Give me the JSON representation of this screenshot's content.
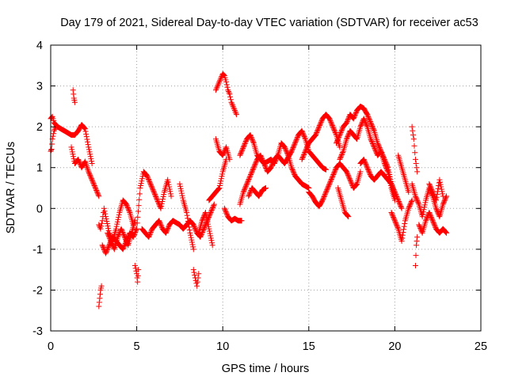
{
  "chart_data": {
    "type": "scatter",
    "title": "Day 179 of 2021, Sidereal Day-to-day VTEC variation (SDTVAR) for receiver ac53",
    "xlabel": "GPS time / hours",
    "ylabel": "SDTVAR / TECUs",
    "xlim": [
      0,
      25
    ],
    "ylim": [
      -3,
      4
    ],
    "xticks": [
      0,
      5,
      10,
      15,
      20,
      25
    ],
    "xtick_labels": [
      "0",
      "5",
      "10",
      "15",
      "20",
      "25"
    ],
    "yticks": [
      -3,
      -2,
      -1,
      0,
      1,
      2,
      3,
      4
    ],
    "ytick_labels": [
      "-3",
      "-2",
      "-1",
      "0",
      "1",
      "2",
      "3",
      "4"
    ],
    "grid": true,
    "marker": "+",
    "color": "#ff0000",
    "series": [
      {
        "name": "SDTVAR",
        "segments": [
          {
            "x": [
              0.0,
              0.1,
              0.2,
              0.4,
              0.6,
              0.8,
              1.0,
              1.2,
              1.4,
              1.6,
              1.8,
              2.0,
              2.2,
              2.4
            ],
            "y": [
              2.2,
              2.25,
              2.1,
              2.0,
              1.95,
              1.9,
              1.85,
              1.8,
              1.8,
              1.9,
              2.05,
              1.95,
              1.5,
              1.1
            ]
          },
          {
            "x": [
              0.0,
              0.05,
              0.1,
              0.2,
              0.3
            ],
            "y": [
              1.4,
              1.45,
              1.7,
              1.9,
              2.0
            ]
          },
          {
            "x": [
              1.2,
              1.4,
              1.6,
              1.8,
              2.0,
              2.2,
              2.4,
              2.6,
              2.8
            ],
            "y": [
              1.5,
              1.1,
              1.2,
              1.0,
              1.15,
              0.9,
              0.7,
              0.5,
              0.3
            ]
          },
          {
            "x": [
              1.3,
              1.35,
              1.4
            ],
            "y": [
              2.9,
              2.7,
              2.6
            ]
          },
          {
            "x": [
              2.8,
              2.9,
              3.0,
              3.1,
              3.2,
              3.4,
              3.6,
              3.8,
              4.0,
              4.2,
              4.4,
              4.6,
              4.8
            ],
            "y": [
              -0.4,
              -0.5,
              -0.3,
              0.0,
              -0.2,
              -0.6,
              -0.8,
              -0.5,
              -0.1,
              0.2,
              0.1,
              -0.1,
              -0.4
            ]
          },
          {
            "x": [
              2.8,
              2.85,
              2.9,
              2.95
            ],
            "y": [
              -2.4,
              -2.2,
              -2.0,
              -1.9
            ]
          },
          {
            "x": [
              3.0,
              3.2,
              3.4,
              3.6,
              3.8,
              4.0,
              4.2,
              4.4,
              4.6,
              4.8,
              5.0
            ],
            "y": [
              -0.9,
              -1.1,
              -0.9,
              -0.7,
              -0.8,
              -0.9,
              -1.0,
              -0.8,
              -0.6,
              -0.7,
              -0.5
            ]
          },
          {
            "x": [
              3.3,
              3.5,
              3.7,
              3.9,
              4.1,
              4.3,
              4.5,
              4.7,
              4.9
            ],
            "y": [
              -0.6,
              -0.8,
              -1.0,
              -0.7,
              -0.5,
              -0.7,
              -0.9,
              -0.6,
              -0.3
            ]
          },
          {
            "x": [
              4.9,
              5.0,
              5.05,
              5.1
            ],
            "y": [
              -1.4,
              -1.6,
              -1.8,
              -1.5
            ]
          },
          {
            "x": [
              5.0,
              5.2,
              5.4,
              5.6,
              5.8,
              6.0,
              6.2,
              6.4,
              6.6,
              6.8,
              7.0
            ],
            "y": [
              -0.5,
              0.5,
              0.9,
              0.8,
              0.6,
              0.4,
              0.2,
              0.0,
              0.4,
              0.7,
              0.3
            ]
          },
          {
            "x": [
              5.3,
              5.5,
              5.7,
              5.9,
              6.1,
              6.3,
              6.5,
              6.7,
              6.9,
              7.1,
              7.3,
              7.5,
              7.7,
              7.9,
              8.1,
              8.3,
              8.5,
              8.7,
              8.9,
              9.1,
              9.3,
              9.5
            ],
            "y": [
              -0.5,
              -0.6,
              -0.7,
              -0.5,
              -0.4,
              -0.3,
              -0.5,
              -0.6,
              -0.4,
              -0.3,
              -0.35,
              -0.4,
              -0.5,
              -0.4,
              -0.3,
              -0.4,
              -0.6,
              -0.7,
              -0.5,
              -0.3,
              -0.1,
              0.1
            ]
          },
          {
            "x": [
              7.5,
              7.7,
              7.9,
              8.1,
              8.3
            ],
            "y": [
              0.6,
              0.2,
              -0.1,
              -0.6,
              -1.0
            ]
          },
          {
            "x": [
              8.3,
              8.4,
              8.5,
              8.6
            ],
            "y": [
              -1.5,
              -1.7,
              -1.9,
              -1.6
            ]
          },
          {
            "x": [
              8.6,
              8.8,
              9.0,
              9.2,
              9.4
            ],
            "y": [
              -0.6,
              -0.3,
              -0.1,
              -0.5,
              -0.9
            ]
          },
          {
            "x": [
              9.2,
              9.4,
              9.6,
              9.8,
              10.0,
              10.2
            ],
            "y": [
              0.2,
              0.3,
              0.4,
              0.5,
              0.9,
              1.2
            ]
          },
          {
            "x": [
              9.6,
              9.7,
              9.8,
              9.9,
              10.0,
              10.1,
              10.2,
              10.3,
              10.4,
              10.5,
              10.6,
              10.7,
              10.8
            ],
            "y": [
              2.9,
              3.0,
              3.1,
              3.2,
              3.3,
              3.25,
              3.1,
              2.9,
              2.8,
              2.6,
              2.5,
              2.4,
              2.3
            ]
          },
          {
            "x": [
              9.6,
              9.8,
              10.0,
              10.2,
              10.4
            ],
            "y": [
              1.7,
              1.4,
              1.3,
              1.5,
              1.2
            ]
          },
          {
            "x": [
              10.1,
              10.3,
              10.5,
              10.7,
              10.9,
              11.1
            ],
            "y": [
              0.0,
              -0.2,
              -0.3,
              -0.25,
              -0.3,
              -0.3
            ]
          },
          {
            "x": [
              11.0,
              11.2,
              11.4,
              11.6,
              11.8,
              12.0,
              12.2,
              12.4,
              12.6,
              12.8,
              13.0,
              13.2,
              13.4,
              13.6,
              13.8,
              14.0,
              14.2,
              14.4,
              14.6,
              14.8,
              15.0
            ],
            "y": [
              1.3,
              1.5,
              1.7,
              1.8,
              1.6,
              1.3,
              1.2,
              1.1,
              1.15,
              1.2,
              1.1,
              1.3,
              1.6,
              1.5,
              1.3,
              1.0,
              0.8,
              0.7,
              0.6,
              0.55,
              0.5
            ]
          },
          {
            "x": [
              11.0,
              11.2,
              11.4,
              11.6,
              11.8,
              12.0,
              12.2,
              12.4,
              12.6,
              12.8,
              13.0,
              13.2,
              13.4,
              13.6,
              13.8,
              14.0,
              14.2,
              14.4,
              14.6,
              14.8,
              15.0,
              15.2,
              15.4,
              15.6,
              15.8,
              16.0
            ],
            "y": [
              0.1,
              0.4,
              0.6,
              0.8,
              1.0,
              1.2,
              1.3,
              1.1,
              0.9,
              1.0,
              1.2,
              1.3,
              1.2,
              1.1,
              1.25,
              1.4,
              1.6,
              1.8,
              1.9,
              1.7,
              1.4,
              1.3,
              1.2,
              1.1,
              1.0,
              0.95
            ]
          },
          {
            "x": [
              11.5,
              11.7,
              11.9,
              12.1,
              12.3,
              12.5
            ],
            "y": [
              0.3,
              0.5,
              0.4,
              0.3,
              0.45,
              0.5
            ]
          },
          {
            "x": [
              14.6,
              14.8,
              15.0,
              15.2,
              15.4,
              15.6,
              15.8,
              16.0,
              16.2,
              16.4,
              16.6,
              16.8
            ],
            "y": [
              1.2,
              1.4,
              1.6,
              1.7,
              1.8,
              2.0,
              2.2,
              2.3,
              2.2,
              2.0,
              1.8,
              1.5
            ]
          },
          {
            "x": [
              15.0,
              15.2,
              15.4,
              15.6,
              15.8,
              16.0,
              16.2,
              16.4,
              16.6,
              16.8,
              17.0,
              17.2,
              17.4,
              17.6,
              17.8,
              18.0
            ],
            "y": [
              0.4,
              0.3,
              0.15,
              0.05,
              0.2,
              0.4,
              0.6,
              0.8,
              1.0,
              1.1,
              1.0,
              0.9,
              0.7,
              0.5,
              0.6,
              0.9
            ]
          },
          {
            "x": [
              16.6,
              16.8,
              17.0,
              17.2,
              17.4,
              17.6,
              17.8,
              18.0,
              18.2,
              18.4,
              18.6,
              18.8,
              19.0,
              19.2,
              19.4,
              19.6,
              19.8,
              20.0
            ],
            "y": [
              1.6,
              1.8,
              2.0,
              2.1,
              2.3,
              2.2,
              2.4,
              2.5,
              2.45,
              2.3,
              2.1,
              1.9,
              1.6,
              1.4,
              1.1,
              0.9,
              0.5,
              0.2
            ]
          },
          {
            "x": [
              16.8,
              17.0,
              17.2,
              17.4,
              17.6,
              17.8,
              18.0,
              18.2,
              18.4,
              18.6,
              18.8,
              19.0,
              19.2,
              19.4,
              19.6,
              19.8,
              20.0
            ],
            "y": [
              1.2,
              1.4,
              1.7,
              1.9,
              1.8,
              1.7,
              2.0,
              2.2,
              2.0,
              1.7,
              1.5,
              1.3,
              1.4,
              1.2,
              1.0,
              0.6,
              0.3
            ]
          },
          {
            "x": [
              16.7,
              16.9,
              17.1,
              17.3
            ],
            "y": [
              0.5,
              0.2,
              -0.1,
              -0.2
            ]
          },
          {
            "x": [
              18.0,
              18.2,
              18.4,
              18.6,
              18.8,
              19.0,
              19.2,
              19.4,
              19.6,
              19.8,
              20.0,
              20.2,
              20.4
            ],
            "y": [
              1.1,
              1.2,
              1.0,
              0.8,
              0.7,
              0.8,
              0.9,
              0.8,
              0.7,
              0.6,
              0.4,
              0.2,
              0.0
            ]
          },
          {
            "x": [
              19.8,
              20.0,
              20.2,
              20.4,
              20.6,
              20.8,
              21.0
            ],
            "y": [
              -0.1,
              -0.3,
              -0.5,
              -0.8,
              -0.3,
              0.0,
              0.2
            ]
          },
          {
            "x": [
              20.2,
              20.4,
              20.6,
              20.8
            ],
            "y": [
              1.3,
              1.0,
              0.7,
              0.4
            ]
          },
          {
            "x": [
              21.0,
              21.1,
              21.2,
              21.3
            ],
            "y": [
              2.0,
              1.7,
              1.2,
              0.9
            ]
          },
          {
            "x": [
              21.2,
              21.25,
              21.3
            ],
            "y": [
              -1.4,
              -0.9,
              -0.7
            ]
          },
          {
            "x": [
              21.0,
              21.2,
              21.4,
              21.6,
              21.8,
              22.0,
              22.2,
              22.4,
              22.6,
              22.8,
              23.0
            ],
            "y": [
              0.6,
              0.3,
              0.1,
              -0.2,
              0.2,
              0.5,
              0.3,
              0.0,
              -0.2,
              0.1,
              0.3
            ]
          },
          {
            "x": [
              21.4,
              21.6,
              21.8,
              22.0,
              22.2,
              22.4,
              22.6,
              22.8,
              23.0
            ],
            "y": [
              -0.4,
              -0.6,
              -0.3,
              -0.1,
              -0.3,
              -0.5,
              -0.6,
              -0.5,
              -0.6
            ]
          },
          {
            "x": [
              22.0,
              22.2,
              22.4,
              22.6,
              22.8
            ],
            "y": [
              0.6,
              0.4,
              0.2,
              0.7,
              0.3
            ]
          }
        ]
      }
    ]
  }
}
